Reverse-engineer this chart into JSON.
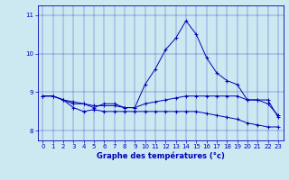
{
  "title": "Graphe des températures (°c)",
  "background_color": "#cce8f0",
  "line_color": "#0000bb",
  "grid_color": "#aaccdd",
  "xlim": [
    -0.5,
    23.5
  ],
  "ylim": [
    7.75,
    11.25
  ],
  "yticks": [
    8,
    9,
    10,
    11
  ],
  "xticks": [
    0,
    1,
    2,
    3,
    4,
    5,
    6,
    7,
    8,
    9,
    10,
    11,
    12,
    13,
    14,
    15,
    16,
    17,
    18,
    19,
    20,
    21,
    22,
    23
  ],
  "series": [
    {
      "x": [
        0,
        1,
        2,
        3,
        4,
        5,
        6,
        7,
        8,
        9,
        10,
        11,
        12,
        13,
        14,
        15,
        16,
        17,
        18,
        19,
        20,
        21,
        22,
        23
      ],
      "y": [
        8.9,
        8.9,
        8.8,
        8.7,
        8.7,
        8.6,
        8.7,
        8.7,
        8.6,
        8.6,
        9.2,
        9.6,
        10.1,
        10.4,
        10.85,
        10.5,
        9.9,
        9.5,
        9.3,
        9.2,
        8.8,
        8.8,
        8.7,
        8.4
      ]
    },
    {
      "x": [
        0,
        1,
        2,
        3,
        4,
        5,
        6,
        7,
        8,
        9,
        10,
        11,
        12,
        13,
        14,
        15,
        16,
        17,
        18,
        19,
        20,
        21,
        22,
        23
      ],
      "y": [
        8.9,
        8.9,
        8.8,
        8.75,
        8.7,
        8.65,
        8.65,
        8.65,
        8.6,
        8.6,
        8.7,
        8.75,
        8.8,
        8.85,
        8.9,
        8.9,
        8.9,
        8.9,
        8.9,
        8.9,
        8.8,
        8.8,
        8.8,
        8.35
      ]
    },
    {
      "x": [
        0,
        1,
        2,
        3,
        4,
        5,
        6,
        7,
        8,
        9,
        10,
        11,
        12,
        13,
        14,
        15,
        16,
        17,
        18,
        19,
        20,
        21,
        22,
        23
      ],
      "y": [
        8.9,
        8.9,
        8.8,
        8.6,
        8.5,
        8.55,
        8.5,
        8.5,
        8.5,
        8.5,
        8.5,
        8.5,
        8.5,
        8.5,
        8.5,
        8.5,
        8.45,
        8.4,
        8.35,
        8.3,
        8.2,
        8.15,
        8.1,
        8.1
      ]
    }
  ],
  "xlabel_fontsize": 6.0,
  "tick_fontsize": 5.0,
  "linewidth": 0.7,
  "markersize": 3.0
}
